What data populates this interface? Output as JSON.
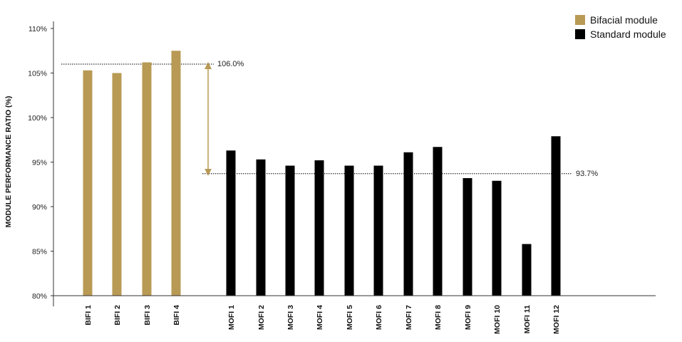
{
  "chart_data": {
    "type": "bar",
    "ylabel": "MODULE PERFORMANCE RATIO (%)",
    "ylim": [
      80,
      110
    ],
    "yticks": [
      80,
      85,
      90,
      95,
      100,
      105,
      110
    ],
    "ytick_labels": [
      "80%",
      "85%",
      "90%",
      "95%",
      "100%",
      "105%",
      "110%"
    ],
    "series": [
      {
        "name": "Bifacial module",
        "color": "#b89a55",
        "categories": [
          "BIFI 1",
          "BIFI 2",
          "BIFI 3",
          "BIFI 4"
        ],
        "values": [
          105.3,
          105.0,
          106.2,
          107.5
        ]
      },
      {
        "name": "Standard module",
        "color": "#000000",
        "categories": [
          "MOFI 1",
          "MOFI 2",
          "MOFI 3",
          "MOFI 4",
          "MOFI 5",
          "MOFI 6",
          "MOFI 7",
          "MOFI 8",
          "MOFI 9",
          "MOFI 10",
          "MOFI 11",
          "MOFI 12"
        ],
        "values": [
          96.3,
          95.3,
          94.6,
          95.2,
          94.6,
          94.6,
          96.1,
          96.7,
          93.2,
          92.9,
          85.8,
          97.9
        ]
      }
    ],
    "reference_lines": [
      {
        "value": 106.0,
        "label": "106.0%"
      },
      {
        "value": 93.7,
        "label": "93.7%"
      }
    ],
    "legend": [
      {
        "label": "Bifacial module",
        "color": "#b89a55"
      },
      {
        "label": "Standard module",
        "color": "#000000"
      }
    ],
    "legend_position": "top-right",
    "annotation": "double-headed arrow between reference lines",
    "grid": false
  }
}
